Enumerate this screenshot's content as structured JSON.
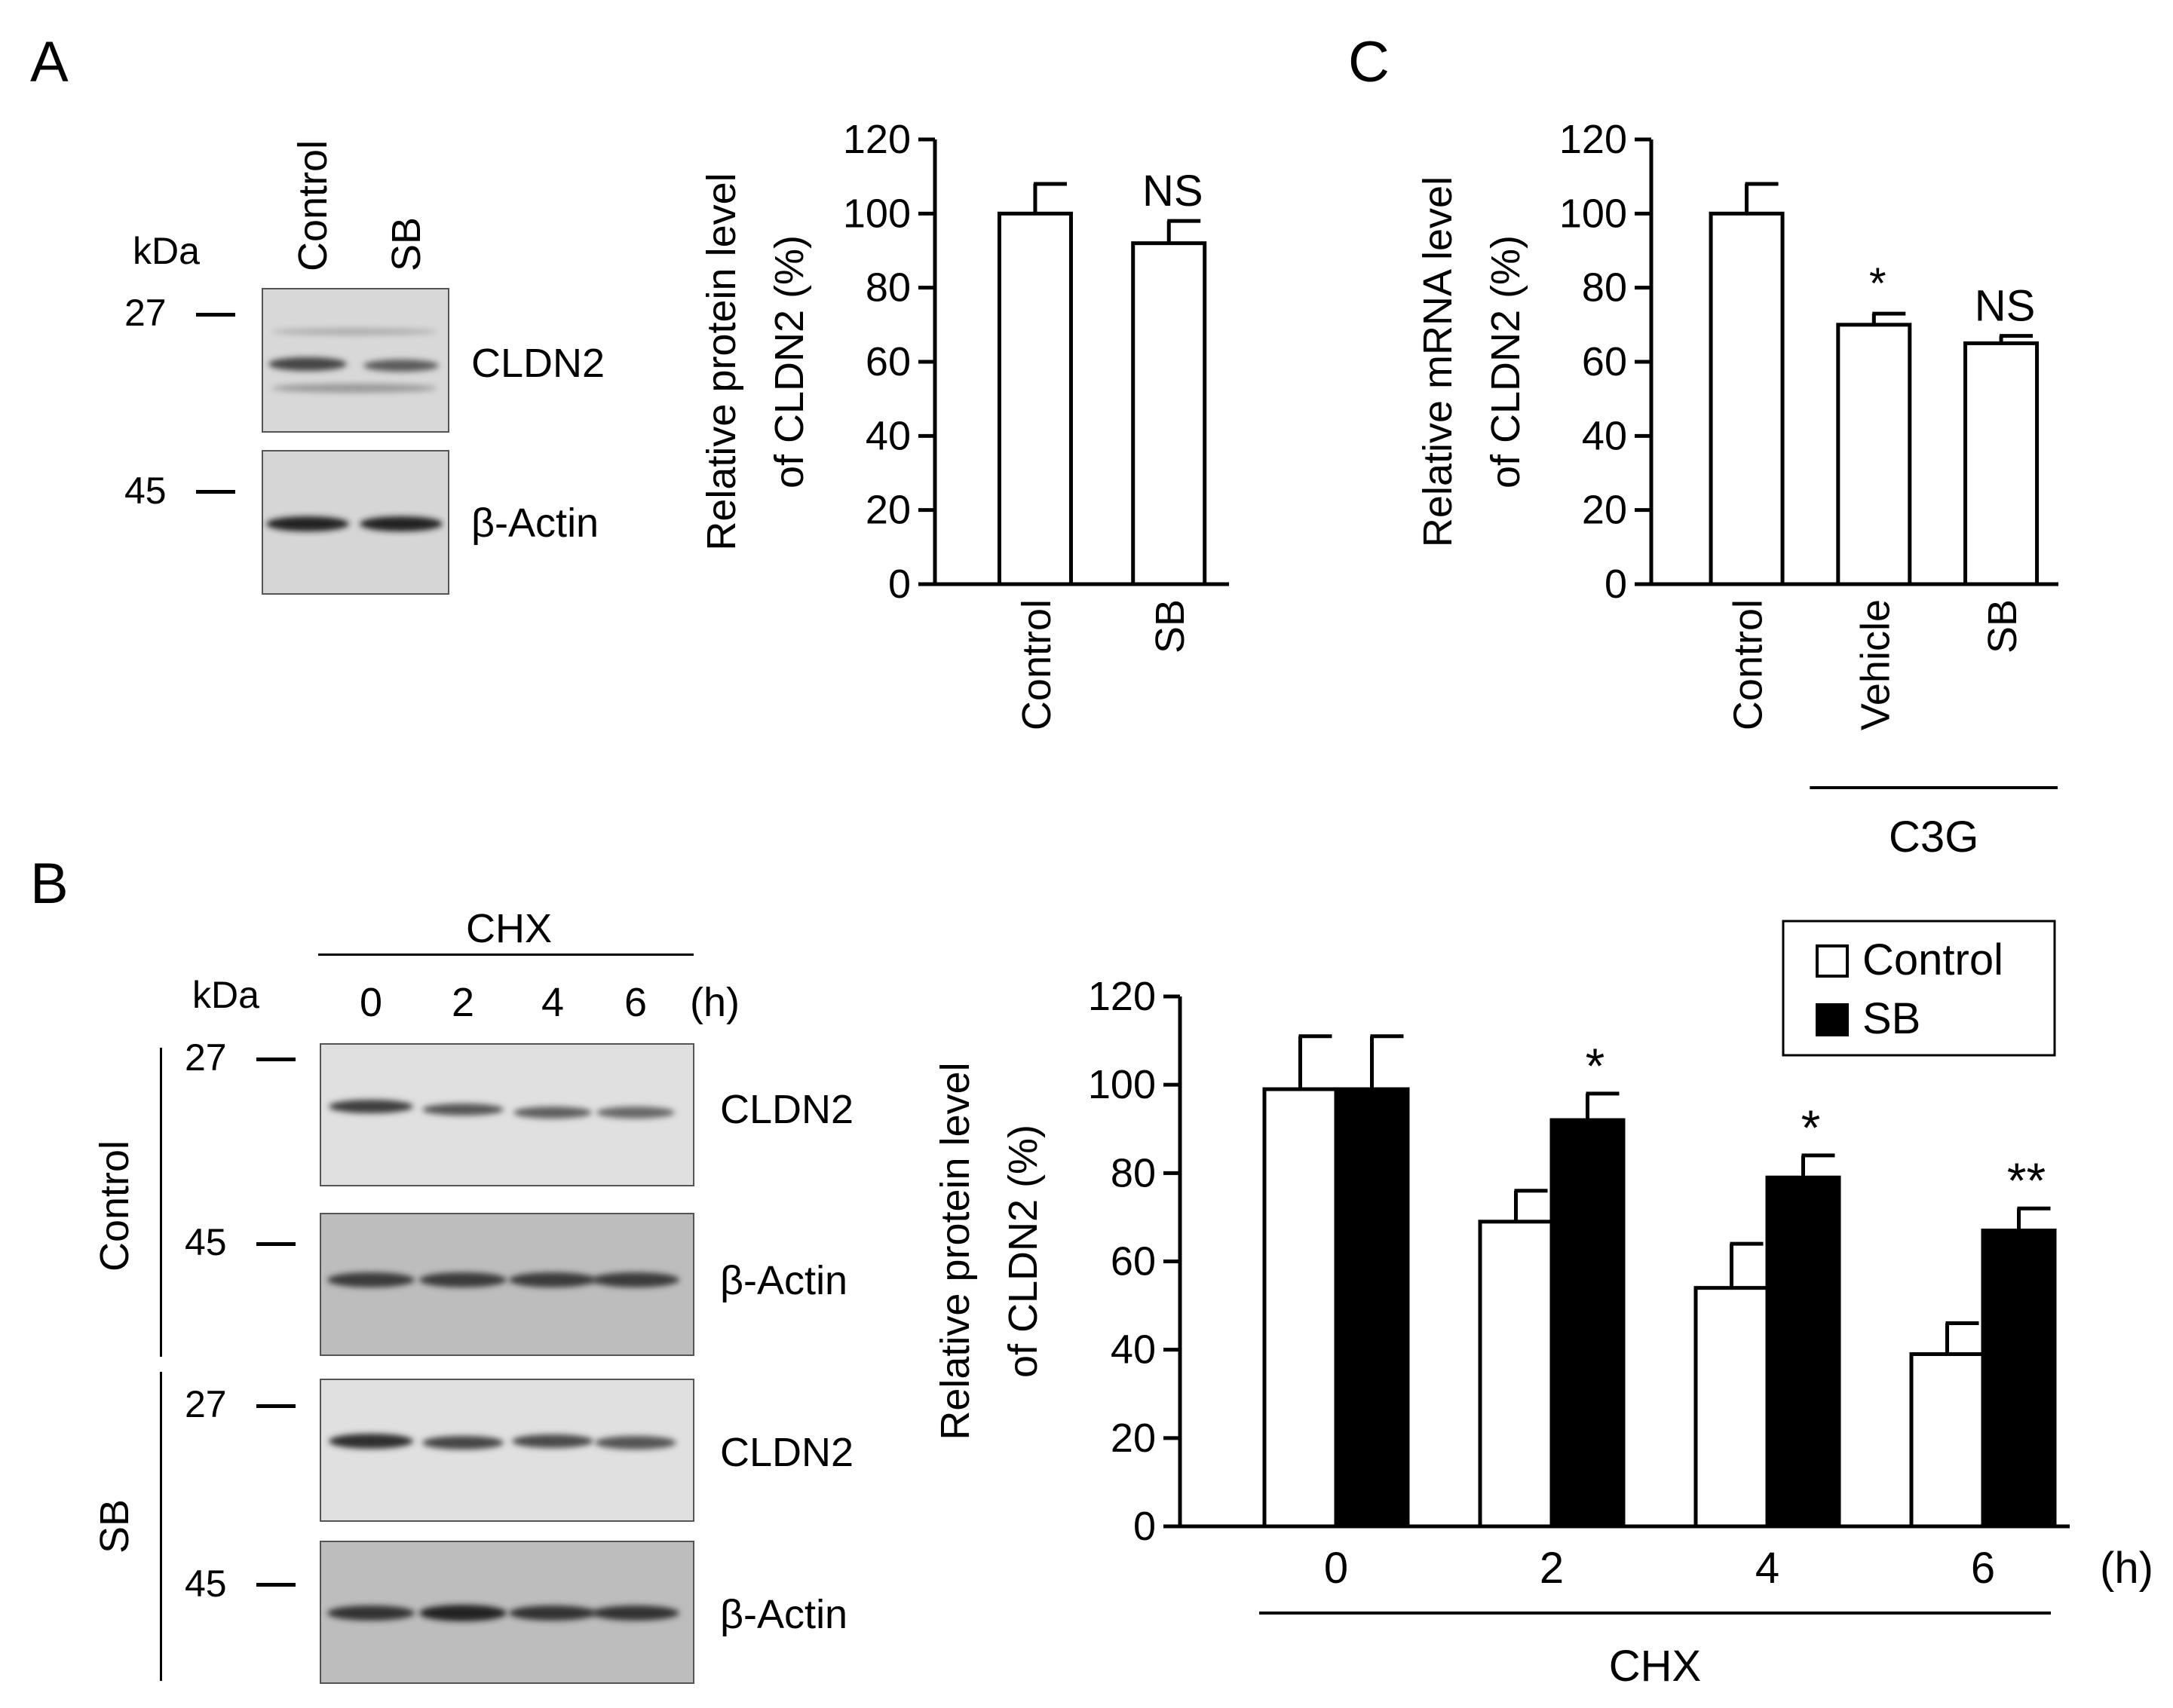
{
  "figure": {
    "panel_labels": {
      "a": "A",
      "b": "B",
      "c": "C"
    },
    "blot_a": {
      "kda_label": "kDa",
      "lanes": [
        "Control",
        "SB"
      ],
      "markers": [
        "27",
        "45"
      ],
      "bands": [
        "CLDN2",
        "β-Actin"
      ]
    },
    "blot_b": {
      "treatment": "CHX",
      "kda_label": "kDa",
      "timepoints": [
        "0",
        "2",
        "4",
        "6"
      ],
      "time_unit": "(h)",
      "groups": [
        "Control",
        "SB"
      ],
      "markers": [
        "27",
        "45"
      ],
      "bands": [
        "CLDN2",
        "β-Actin"
      ]
    }
  },
  "chart_data": [
    {
      "panel": "A",
      "type": "bar",
      "categories": [
        "Control",
        "SB"
      ],
      "values": [
        100,
        92
      ],
      "errors": [
        8,
        6
      ],
      "annotations": [
        "",
        "NS"
      ],
      "ylabel_line1": "Relative protein level",
      "ylabel_line2": "of CLDN2 (%)",
      "ylim": [
        0,
        120
      ],
      "yticks": [
        "0",
        "20",
        "40",
        "60",
        "80",
        "100",
        "120"
      ],
      "bar_fill": "#ffffff",
      "grid": false
    },
    {
      "panel": "C",
      "type": "bar",
      "categories": [
        "Control",
        "Vehicle",
        "SB"
      ],
      "values": [
        100,
        70,
        65
      ],
      "errors": [
        8,
        3,
        2
      ],
      "annotations": [
        "",
        "*",
        "NS"
      ],
      "group_label": "C3G",
      "ylabel_line1": "Relative mRNA level",
      "ylabel_line2": "of CLDN2 (%)",
      "ylim": [
        0,
        120
      ],
      "yticks": [
        "0",
        "20",
        "40",
        "60",
        "80",
        "100",
        "120"
      ],
      "bar_fill": "#ffffff",
      "grid": false
    },
    {
      "panel": "B",
      "type": "bar",
      "categories": [
        "0",
        "2",
        "4",
        "6"
      ],
      "series": [
        {
          "name": "Control",
          "values": [
            99,
            69,
            54,
            39
          ],
          "errors": [
            12,
            7,
            10,
            7
          ],
          "color": "#ffffff"
        },
        {
          "name": "SB",
          "values": [
            99,
            92,
            79,
            67
          ],
          "errors": [
            12,
            6,
            5,
            5
          ],
          "color": "#000000"
        }
      ],
      "annotations": [
        "",
        "*",
        "*",
        "**"
      ],
      "x_unit": "(h)",
      "xlabel": "CHX",
      "ylabel_line1": "Relative protein level",
      "ylabel_line2": "of CLDN2  (%)",
      "ylim": [
        0,
        120
      ],
      "yticks": [
        "0",
        "20",
        "40",
        "60",
        "80",
        "100",
        "120"
      ],
      "legend_position": "top-right",
      "grid": false
    }
  ]
}
